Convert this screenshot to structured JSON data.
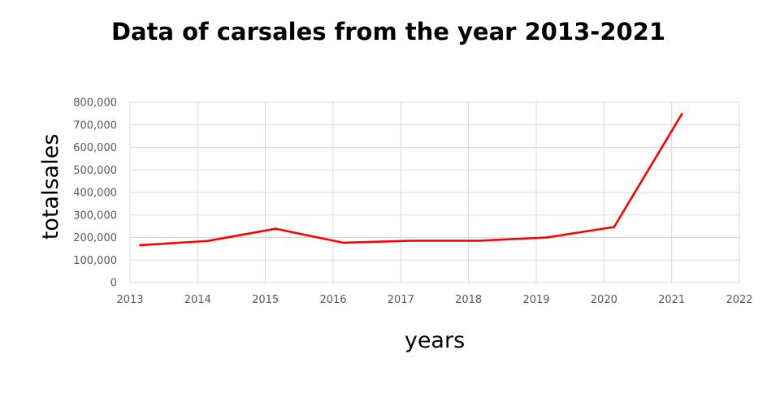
{
  "chart_data": {
    "type": "line",
    "title": "Data of carsales from the year 2013-2021",
    "xlabel": "years",
    "ylabel": "totalsales",
    "xlim": [
      2013,
      2022
    ],
    "ylim": [
      0,
      800000
    ],
    "x_ticks": [
      "2013",
      "2014",
      "2015",
      "2016",
      "2017",
      "2018",
      "2019",
      "2020",
      "2021",
      "2022"
    ],
    "y_ticks": [
      "0",
      "100,000",
      "200,000",
      "300,000",
      "400,000",
      "500,000",
      "600,000",
      "700,000",
      "800,000"
    ],
    "grid": true,
    "legend": "none",
    "series": [
      {
        "color": "#ff0000",
        "x": [
          2013.15,
          2014.15,
          2015.15,
          2016.15,
          2017.15,
          2018.15,
          2019.15,
          2020.15,
          2021.15
        ],
        "y": [
          166000,
          185000,
          239000,
          177000,
          186000,
          186000,
          200000,
          247000,
          748000
        ]
      }
    ]
  }
}
